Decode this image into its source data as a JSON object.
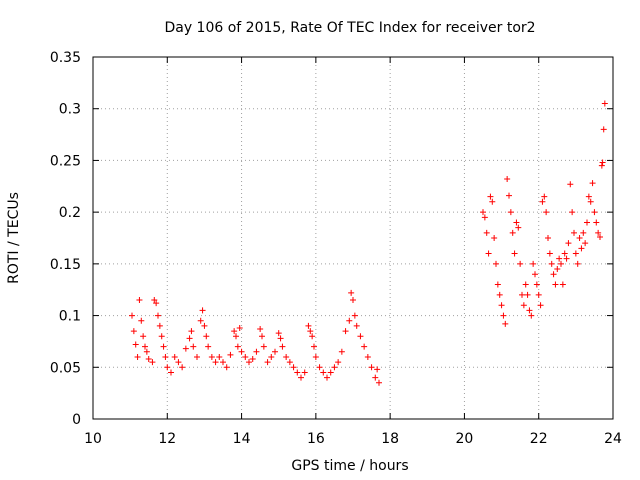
{
  "chart_data": {
    "type": "scatter",
    "title": "Day 106 of 2015, Rate Of TEC Index for receiver tor2",
    "xlabel": "GPS time / hours",
    "ylabel": "ROTI / TECUs",
    "xlim": [
      10,
      24
    ],
    "ylim": [
      0,
      0.35
    ],
    "xticks": [
      "10",
      "12",
      "14",
      "16",
      "18",
      "20",
      "22",
      "24"
    ],
    "yticks": [
      "0",
      "0.05",
      "0.1",
      "0.15",
      "0.2",
      "0.25",
      "0.3",
      "0.35"
    ],
    "grid": true,
    "marker": "+",
    "color": "#ff0000",
    "series": [
      {
        "points": [
          [
            11.05,
            0.1
          ],
          [
            11.1,
            0.085
          ],
          [
            11.15,
            0.072
          ],
          [
            11.2,
            0.06
          ],
          [
            11.25,
            0.115
          ],
          [
            11.3,
            0.095
          ],
          [
            11.35,
            0.08
          ],
          [
            11.4,
            0.07
          ],
          [
            11.45,
            0.065
          ],
          [
            11.5,
            0.058
          ],
          [
            11.6,
            0.055
          ],
          [
            11.65,
            0.115
          ],
          [
            11.7,
            0.112
          ],
          [
            11.75,
            0.1
          ],
          [
            11.8,
            0.09
          ],
          [
            11.85,
            0.08
          ],
          [
            11.9,
            0.07
          ],
          [
            11.95,
            0.06
          ],
          [
            12.0,
            0.05
          ],
          [
            12.1,
            0.045
          ],
          [
            12.2,
            0.06
          ],
          [
            12.3,
            0.055
          ],
          [
            12.4,
            0.05
          ],
          [
            12.5,
            0.068
          ],
          [
            12.6,
            0.078
          ],
          [
            12.65,
            0.085
          ],
          [
            12.7,
            0.07
          ],
          [
            12.8,
            0.06
          ],
          [
            12.9,
            0.095
          ],
          [
            12.95,
            0.105
          ],
          [
            13.0,
            0.09
          ],
          [
            13.05,
            0.08
          ],
          [
            13.1,
            0.07
          ],
          [
            13.2,
            0.06
          ],
          [
            13.3,
            0.055
          ],
          [
            13.4,
            0.06
          ],
          [
            13.5,
            0.055
          ],
          [
            13.6,
            0.05
          ],
          [
            13.7,
            0.062
          ],
          [
            13.8,
            0.085
          ],
          [
            13.85,
            0.08
          ],
          [
            13.9,
            0.07
          ],
          [
            13.95,
            0.088
          ],
          [
            14.0,
            0.065
          ],
          [
            14.1,
            0.06
          ],
          [
            14.2,
            0.055
          ],
          [
            14.3,
            0.058
          ],
          [
            14.4,
            0.065
          ],
          [
            14.5,
            0.087
          ],
          [
            14.55,
            0.08
          ],
          [
            14.6,
            0.07
          ],
          [
            14.7,
            0.055
          ],
          [
            14.8,
            0.06
          ],
          [
            14.9,
            0.065
          ],
          [
            15.0,
            0.083
          ],
          [
            15.05,
            0.078
          ],
          [
            15.1,
            0.07
          ],
          [
            15.2,
            0.06
          ],
          [
            15.3,
            0.055
          ],
          [
            15.4,
            0.05
          ],
          [
            15.5,
            0.045
          ],
          [
            15.6,
            0.04
          ],
          [
            15.7,
            0.045
          ],
          [
            15.8,
            0.09
          ],
          [
            15.85,
            0.085
          ],
          [
            15.9,
            0.08
          ],
          [
            15.95,
            0.07
          ],
          [
            16.0,
            0.06
          ],
          [
            16.1,
            0.05
          ],
          [
            16.2,
            0.045
          ],
          [
            16.3,
            0.04
          ],
          [
            16.4,
            0.045
          ],
          [
            16.5,
            0.05
          ],
          [
            16.6,
            0.055
          ],
          [
            16.7,
            0.065
          ],
          [
            16.8,
            0.085
          ],
          [
            16.9,
            0.095
          ],
          [
            16.95,
            0.122
          ],
          [
            17.0,
            0.115
          ],
          [
            17.05,
            0.1
          ],
          [
            17.1,
            0.09
          ],
          [
            17.2,
            0.08
          ],
          [
            17.3,
            0.07
          ],
          [
            17.4,
            0.06
          ],
          [
            17.5,
            0.05
          ],
          [
            17.6,
            0.04
          ],
          [
            17.65,
            0.048
          ],
          [
            17.7,
            0.035
          ],
          [
            20.5,
            0.2
          ],
          [
            20.55,
            0.195
          ],
          [
            20.6,
            0.18
          ],
          [
            20.65,
            0.16
          ],
          [
            20.7,
            0.215
          ],
          [
            20.75,
            0.21
          ],
          [
            20.8,
            0.175
          ],
          [
            20.85,
            0.15
          ],
          [
            20.9,
            0.13
          ],
          [
            20.95,
            0.12
          ],
          [
            21.0,
            0.11
          ],
          [
            21.05,
            0.1
          ],
          [
            21.1,
            0.092
          ],
          [
            21.15,
            0.232
          ],
          [
            21.2,
            0.216
          ],
          [
            21.25,
            0.2
          ],
          [
            21.3,
            0.18
          ],
          [
            21.35,
            0.16
          ],
          [
            21.4,
            0.19
          ],
          [
            21.45,
            0.185
          ],
          [
            21.5,
            0.15
          ],
          [
            21.55,
            0.12
          ],
          [
            21.6,
            0.11
          ],
          [
            21.65,
            0.13
          ],
          [
            21.7,
            0.12
          ],
          [
            21.75,
            0.105
          ],
          [
            21.8,
            0.1
          ],
          [
            21.85,
            0.15
          ],
          [
            21.9,
            0.14
          ],
          [
            21.95,
            0.13
          ],
          [
            22.0,
            0.12
          ],
          [
            22.05,
            0.11
          ],
          [
            22.1,
            0.21
          ],
          [
            22.15,
            0.215
          ],
          [
            22.2,
            0.2
          ],
          [
            22.25,
            0.175
          ],
          [
            22.3,
            0.16
          ],
          [
            22.35,
            0.15
          ],
          [
            22.4,
            0.14
          ],
          [
            22.45,
            0.13
          ],
          [
            22.5,
            0.145
          ],
          [
            22.55,
            0.155
          ],
          [
            22.6,
            0.15
          ],
          [
            22.65,
            0.13
          ],
          [
            22.7,
            0.16
          ],
          [
            22.75,
            0.155
          ],
          [
            22.8,
            0.17
          ],
          [
            22.85,
            0.227
          ],
          [
            22.9,
            0.2
          ],
          [
            22.95,
            0.18
          ],
          [
            23.0,
            0.16
          ],
          [
            23.05,
            0.15
          ],
          [
            23.1,
            0.175
          ],
          [
            23.15,
            0.165
          ],
          [
            23.2,
            0.18
          ],
          [
            23.25,
            0.17
          ],
          [
            23.3,
            0.19
          ],
          [
            23.35,
            0.215
          ],
          [
            23.4,
            0.21
          ],
          [
            23.45,
            0.228
          ],
          [
            23.5,
            0.2
          ],
          [
            23.55,
            0.19
          ],
          [
            23.6,
            0.18
          ],
          [
            23.65,
            0.176
          ],
          [
            23.7,
            0.245
          ],
          [
            23.72,
            0.248
          ],
          [
            23.75,
            0.28
          ],
          [
            23.78,
            0.305
          ]
        ]
      }
    ]
  }
}
